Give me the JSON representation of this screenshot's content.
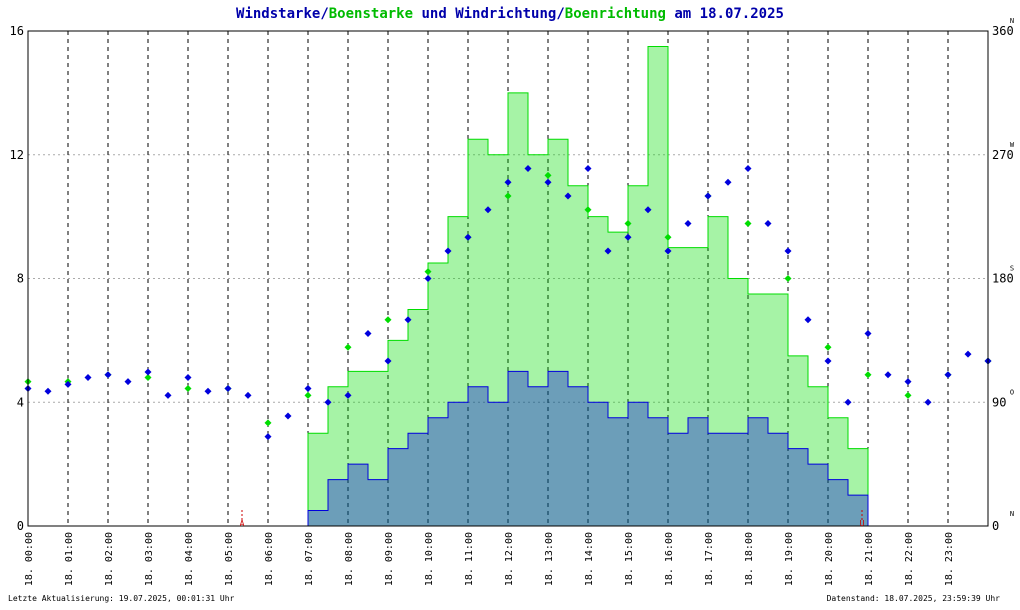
{
  "title": {
    "part1": "Windstarke",
    "sep1": "/",
    "part2": "Boenstarke",
    "part3": " und ",
    "part4": "Windrichtung",
    "sep2": "/",
    "part5": "Boenrichtung",
    "part6": " am 18.07.2025"
  },
  "footer": {
    "left": "Letzte Aktualisierung: 19.07.2025, 00:01:31 Uhr",
    "right": "Datenstand: 18.07.2025, 23:59:39 Uhr"
  },
  "colors": {
    "wind": "#0000dd",
    "gust": "#00dd00",
    "title_wind": "#0000aa",
    "title_gust": "#00bb00",
    "grid": "#aaaaaa",
    "marker": "#cc0000"
  },
  "chart_data": {
    "type": "line",
    "x_range": [
      "18.07.2025 00:00",
      "18.07.2025 24:00"
    ],
    "y_left": {
      "ylim": [
        0,
        16
      ],
      "ticks": [
        "0",
        "4",
        "8",
        "12",
        "16"
      ]
    },
    "y_right": {
      "ylim": [
        0,
        360
      ],
      "ticks": [
        "0",
        "90",
        "180",
        "270",
        "360"
      ],
      "compass": [
        "N",
        "O",
        "S",
        "W",
        "N"
      ]
    },
    "x_tick_labels": [
      "18. 00:00",
      "18. 01:00",
      "18. 02:00",
      "18. 03:00",
      "18. 04:00",
      "18. 05:00",
      "18. 06:00",
      "18. 07:00",
      "18. 08:00",
      "18. 09:00",
      "18. 10:00",
      "18. 11:00",
      "18. 12:00",
      "18. 13:00",
      "18. 14:00",
      "18. 15:00",
      "18. 16:00",
      "18. 17:00",
      "18. 18:00",
      "18. 19:00",
      "18. 20:00",
      "18. 21:00",
      "18. 22:00",
      "18. 23:00"
    ],
    "markers": [
      {
        "label": "A",
        "hour": 5.35
      },
      {
        "label": "U",
        "hour": 20.85
      }
    ],
    "series": [
      {
        "name": "Windstarke",
        "hours": [
          0,
          0.5,
          1,
          1.5,
          2,
          2.5,
          3,
          3.5,
          4,
          4.5,
          5,
          5.5,
          6,
          6.5,
          7,
          7.5,
          8,
          8.5,
          9,
          9.5,
          10,
          10.5,
          11,
          11.5,
          12,
          12.5,
          13,
          13.5,
          14,
          14.5,
          15,
          15.5,
          16,
          16.5,
          17,
          17.5,
          18,
          18.5,
          19,
          19.5,
          20,
          20.5,
          21,
          21.5,
          22,
          22.5,
          23,
          23.5,
          24
        ],
        "values": [
          0,
          0,
          0,
          0,
          0,
          0,
          0,
          0,
          0,
          0,
          0,
          0,
          0,
          0,
          0.5,
          1.5,
          2,
          1.5,
          2.5,
          3,
          3.5,
          4,
          4.5,
          4,
          5,
          4.5,
          5,
          4.5,
          4,
          3.5,
          4,
          3.5,
          3,
          3.5,
          3,
          3,
          3.5,
          3,
          2.5,
          2,
          1.5,
          1,
          0,
          0,
          0,
          0,
          0,
          0,
          0
        ]
      },
      {
        "name": "Boenstarke",
        "hours": [
          0,
          0.5,
          1,
          1.5,
          2,
          2.5,
          3,
          3.5,
          4,
          4.5,
          5,
          5.5,
          6,
          6.5,
          7,
          7.5,
          8,
          8.5,
          9,
          9.5,
          10,
          10.5,
          11,
          11.5,
          12,
          12.5,
          13,
          13.5,
          14,
          14.5,
          15,
          15.5,
          16,
          16.5,
          17,
          17.5,
          18,
          18.5,
          19,
          19.5,
          20,
          20.5,
          21,
          21.5,
          22,
          22.5,
          23,
          23.5,
          24
        ],
        "values": [
          0,
          0,
          0,
          0,
          0,
          0,
          0,
          0,
          0,
          0,
          0,
          0,
          0,
          0,
          3,
          4.5,
          5,
          5,
          6,
          7,
          8.5,
          10,
          12.5,
          12,
          14,
          12,
          12.5,
          11,
          10,
          9.5,
          11,
          15.5,
          9,
          9,
          10,
          8,
          7.5,
          7.5,
          5.5,
          4.5,
          3.5,
          2.5,
          0,
          0,
          0,
          0,
          0,
          0,
          0
        ]
      },
      {
        "name": "Windrichtung",
        "hours": [
          0,
          0.5,
          1,
          1.5,
          2,
          2.5,
          3,
          3.5,
          4,
          4.5,
          5,
          5.5,
          6,
          6.5,
          7,
          7.5,
          8,
          8.5,
          9,
          9.5,
          10,
          10.5,
          11,
          11.5,
          12,
          12.5,
          13,
          13.5,
          14,
          14.5,
          15,
          15.5,
          16,
          16.5,
          17,
          17.5,
          18,
          18.5,
          19,
          19.5,
          20,
          20.5,
          21,
          21.5,
          22,
          22.5,
          23,
          23.5,
          24
        ],
        "values": [
          100,
          98,
          103,
          108,
          110,
          105,
          112,
          95,
          108,
          98,
          100,
          95,
          65,
          80,
          100,
          90,
          95,
          140,
          120,
          150,
          180,
          200,
          210,
          230,
          250,
          260,
          250,
          240,
          260,
          200,
          210,
          230,
          200,
          220,
          240,
          250,
          260,
          220,
          200,
          150,
          120,
          90,
          140,
          110,
          105,
          90,
          110,
          125,
          120
        ]
      },
      {
        "name": "Boenrichtung",
        "hours": [
          0,
          1,
          2,
          3,
          4,
          5,
          6,
          7,
          8,
          9,
          10,
          11,
          12,
          13,
          14,
          15,
          16,
          17,
          18,
          19,
          20,
          21,
          22,
          23,
          24
        ],
        "values": [
          105,
          105,
          110,
          108,
          100,
          100,
          75,
          95,
          130,
          150,
          185,
          210,
          240,
          255,
          230,
          220,
          210,
          240,
          220,
          180,
          130,
          110,
          95,
          110,
          120
        ]
      }
    ]
  }
}
